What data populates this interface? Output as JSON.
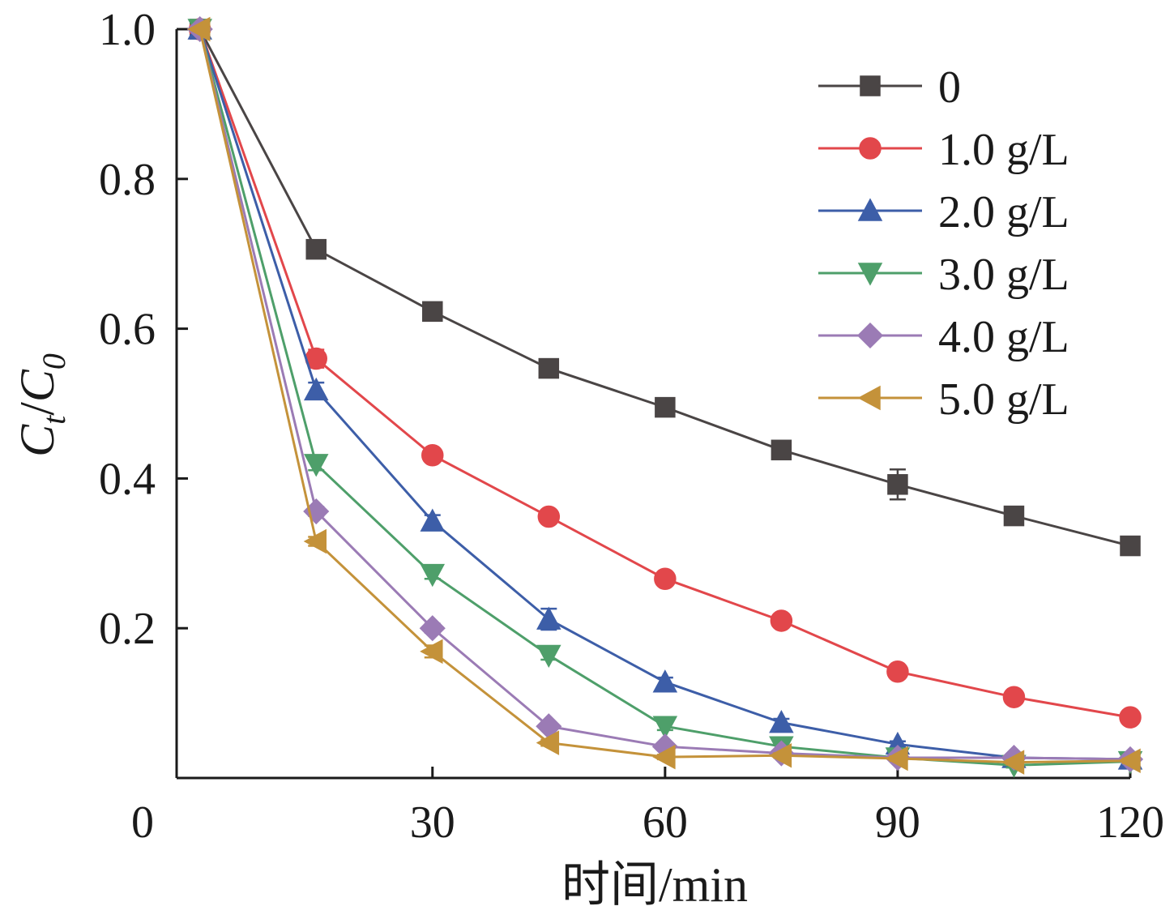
{
  "chart_data": {
    "type": "line",
    "title": "",
    "xlabel": "时间/min",
    "ylabel": "Ct/C0",
    "ylabel_parts": {
      "main1": "C",
      "sub1": "t",
      "slash": "/",
      "main2": "C",
      "sub2": "0"
    },
    "xlim": [
      -3,
      120
    ],
    "ylim": [
      0.0,
      1.0
    ],
    "xticks": [
      0,
      30,
      60,
      90,
      120
    ],
    "xtick_labels": [
      "0",
      "30",
      "60",
      "90",
      "120"
    ],
    "yticks": [
      0.2,
      0.4,
      0.6,
      0.8,
      1.0
    ],
    "ytick_labels": [
      "0.2",
      "0.4",
      "0.6",
      "0.8",
      "1.0"
    ],
    "grid": false,
    "legend_position": "top-right",
    "x": [
      0,
      15,
      30,
      45,
      60,
      75,
      90,
      105,
      120
    ],
    "series": [
      {
        "name": "0",
        "color": "#4a4545",
        "marker": "square",
        "values": [
          1.0,
          0.706,
          0.623,
          0.547,
          0.495,
          0.438,
          0.392,
          0.35,
          0.31
        ],
        "errors": [
          0,
          0.008,
          0.006,
          0.006,
          0.006,
          0.006,
          0.02,
          0.006,
          0.006
        ]
      },
      {
        "name": "1.0 g/L",
        "color": "#e2474b",
        "marker": "circle",
        "values": [
          1.0,
          0.56,
          0.431,
          0.349,
          0.266,
          0.21,
          0.142,
          0.108,
          0.081
        ],
        "errors": [
          0,
          0.012,
          0.006,
          0.006,
          0.005,
          0.005,
          0.005,
          0.005,
          0.005
        ]
      },
      {
        "name": "2.0 g/L",
        "color": "#3d5ea8",
        "marker": "triangle-up",
        "values": [
          1.0,
          0.518,
          0.343,
          0.212,
          0.128,
          0.074,
          0.045,
          0.027,
          0.025
        ],
        "errors": [
          0,
          0.01,
          0.008,
          0.014,
          0.006,
          0.005,
          0.004,
          0.003,
          0.003
        ]
      },
      {
        "name": "3.0 g/L",
        "color": "#4e9f6a",
        "marker": "triangle-down",
        "values": [
          1.0,
          0.419,
          0.272,
          0.164,
          0.069,
          0.042,
          0.027,
          0.017,
          0.022
        ],
        "errors": [
          0,
          0.008,
          0.006,
          0.006,
          0.005,
          0.004,
          0.003,
          0.003,
          0.003
        ]
      },
      {
        "name": "4.0 g/L",
        "color": "#9b7bb5",
        "marker": "diamond",
        "values": [
          1.0,
          0.356,
          0.2,
          0.069,
          0.042,
          0.033,
          0.027,
          0.027,
          0.025
        ],
        "errors": [
          0,
          0.006,
          0.006,
          0.005,
          0.004,
          0.003,
          0.003,
          0.003,
          0.003
        ]
      },
      {
        "name": "5.0 g/L",
        "color": "#c4923a",
        "marker": "triangle-left",
        "values": [
          1.0,
          0.316,
          0.169,
          0.047,
          0.028,
          0.03,
          0.026,
          0.021,
          0.023
        ],
        "errors": [
          0,
          0.006,
          0.008,
          0.004,
          0.003,
          0.003,
          0.003,
          0.003,
          0.003
        ]
      }
    ]
  }
}
